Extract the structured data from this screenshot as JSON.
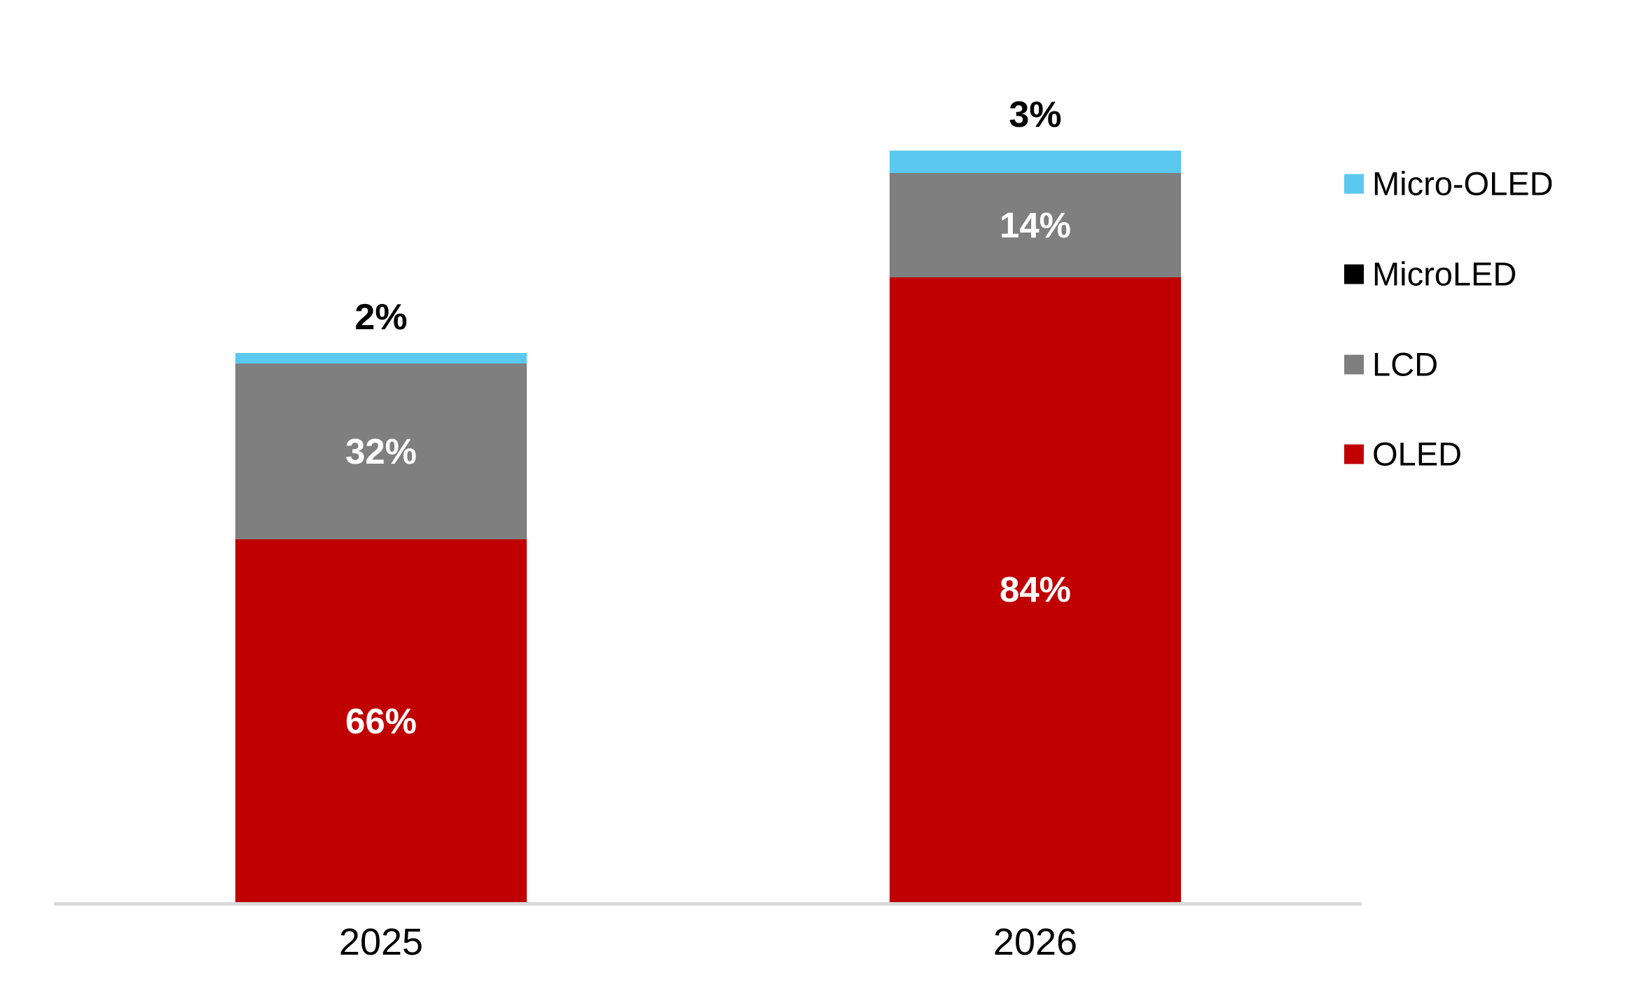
{
  "page": {
    "background_color": "#ffffff"
  },
  "chart_data": {
    "type": "bar",
    "subtype": "stacked-column",
    "title": "",
    "xlabel": "",
    "ylabel": "",
    "grid": false,
    "categories": [
      "2025",
      "2026"
    ],
    "series": [
      {
        "name": "OLED",
        "color": "#c00000",
        "values": [
          66,
          84
        ],
        "data_labels": [
          "66%",
          "84%"
        ],
        "label_color": "#ffffff",
        "label_placement": "inside"
      },
      {
        "name": "LCD",
        "color": "#7f7f7f",
        "values": [
          32,
          14
        ],
        "data_labels": [
          "32%",
          "14%"
        ],
        "label_color": "#ffffff",
        "label_placement": "inside"
      },
      {
        "name": "MicroLED",
        "color": "#000000",
        "values": [
          0,
          0
        ],
        "data_labels": [
          "",
          ""
        ],
        "label_color": "#ffffff",
        "label_placement": "inside"
      },
      {
        "name": "Micro-OLED",
        "color": "#5bc8f0",
        "values": [
          2,
          3
        ],
        "data_labels": [
          "2%",
          "3%"
        ],
        "label_color": "#000000",
        "label_placement": "above"
      }
    ],
    "stack_order_bottom_to_top": [
      "OLED",
      "LCD",
      "MicroLED",
      "Micro-OLED"
    ],
    "relative_bar_heights": [
      0.731,
      1.0
    ],
    "x_axis": {
      "labels": [
        "2025",
        "2026"
      ],
      "line_color": "#d9d9d9"
    },
    "legend": {
      "position": "right",
      "items": [
        {
          "label": "Micro-OLED",
          "color": "#5bc8f0"
        },
        {
          "label": "MicroLED",
          "color": "#000000"
        },
        {
          "label": "LCD",
          "color": "#7f7f7f"
        },
        {
          "label": "OLED",
          "color": "#c00000"
        }
      ]
    }
  }
}
